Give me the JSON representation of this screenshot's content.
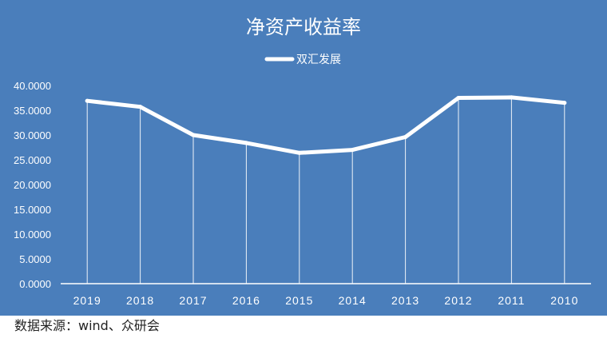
{
  "colors": {
    "panel_bg": "#4a7ebb",
    "series_line": "#ffffff",
    "gridline": "#ffffff",
    "text_light": "#ffffff",
    "text_dark": "#222222"
  },
  "source_note": "数据来源：wind、众研会",
  "chart_data": {
    "type": "line",
    "title": "净资产收益率",
    "xlabel": "",
    "ylabel": "",
    "x": [
      "2019",
      "2018",
      "2017",
      "2016",
      "2015",
      "2014",
      "2013",
      "2012",
      "2011",
      "2010"
    ],
    "series": [
      {
        "name": "双汇发展",
        "values": [
          36.9,
          35.7,
          30.0,
          28.4,
          26.4,
          27.0,
          29.6,
          37.5,
          37.6,
          36.5
        ]
      }
    ],
    "ylim": [
      0,
      40
    ],
    "yticks": [
      0,
      5,
      10,
      15,
      20,
      25,
      30,
      35,
      40
    ],
    "ytick_labels": [
      "0.0000",
      "5.0000",
      "10.0000",
      "15.0000",
      "20.0000",
      "25.0000",
      "30.0000",
      "35.0000",
      "40.0000"
    ],
    "vertical_drop_lines": true,
    "horizontal_grid": false,
    "legend_position": "top-center"
  }
}
